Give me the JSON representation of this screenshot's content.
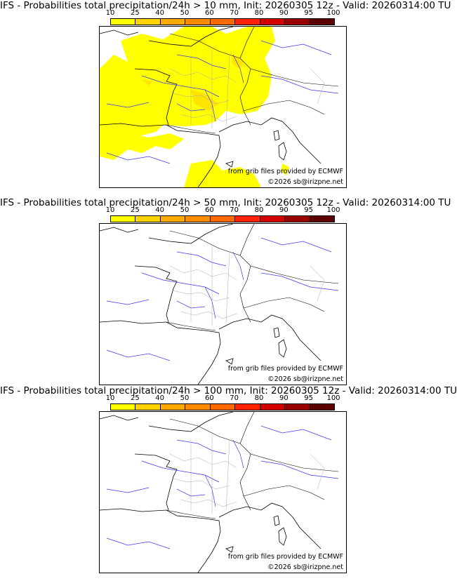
{
  "panels": [
    {
      "title": "IFS - Probabilities total precipitation/24h > 10 mm, Init: 20260305 12z - Valid: 20260314:00 TU",
      "has_precip": true
    },
    {
      "title": "IFS - Probabilities total precipitation/24h > 50 mm, Init: 20260305 12z - Valid: 20260314:00 TU",
      "has_precip": false
    },
    {
      "title": "IFS - Probabilities total precipitation/24h > 100 mm, Init: 20260305 12z - Valid: 20260314:00 TU",
      "has_precip": false
    }
  ],
  "colorbar": {
    "ticks": [
      "10",
      "25",
      "40",
      "50",
      "60",
      "70",
      "80",
      "90",
      "95",
      "100"
    ],
    "colors": [
      "#ffff00",
      "#ffd200",
      "#ffaa00",
      "#ff8c00",
      "#ff6a00",
      "#ff2200",
      "#d40000",
      "#980000",
      "#5c0000"
    ]
  },
  "credits": {
    "source": "from grib files provided by ECMWF",
    "copyright": "©2026 sb@irizpne.net"
  }
}
